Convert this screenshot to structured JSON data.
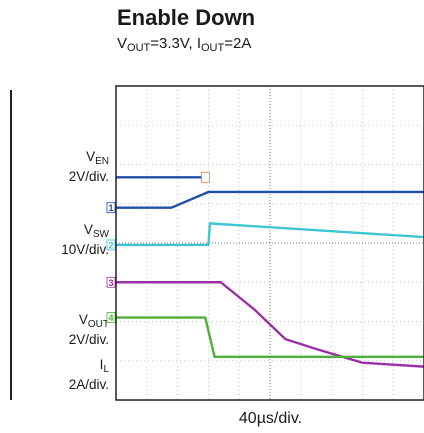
{
  "header": {
    "title": "Enable Down",
    "subtitle": {
      "v": "V",
      "vsub": "OUT",
      "vrest": "=3.3V, I",
      "isub": "OUT",
      "irest": "=2A"
    }
  },
  "labels": {
    "ven": {
      "main": "V",
      "sub": "EN",
      "scale": "2V/div."
    },
    "vsw": {
      "main": "V",
      "sub": "SW",
      "scale": "10V/div."
    },
    "vout": {
      "main": "V",
      "sub": "OUT",
      "scale": "2V/div."
    },
    "il": {
      "main": "I",
      "sub": "L",
      "scale": "2A/div."
    }
  },
  "xaxis": {
    "label": "40µs/div."
  },
  "colors": {
    "ch1": "#1f4fa8",
    "ch2": "#3cc6d4",
    "ch3": "#9b2fa6",
    "ch4": "#4fb03a",
    "trigger": "#f08020"
  },
  "chart_data": {
    "type": "line",
    "title": "Enable Down",
    "subtitle": "VOUT=3.3V, IOUT=2A",
    "xlabel": "40µs/div.",
    "x_divisions": 10,
    "y_divisions": 8,
    "grid": true,
    "series": [
      {
        "name": "VEN",
        "scale": "2V/div.",
        "marker": "1",
        "x": [
          0,
          1.8,
          3.0,
          10
        ],
        "divisions": [
          4.9,
          4.9,
          5.3,
          5.3
        ]
      },
      {
        "name": "VSW",
        "scale": "10V/div.",
        "marker": "2",
        "x": [
          0,
          3.0,
          3.05,
          10
        ],
        "divisions": [
          3.95,
          3.95,
          4.5,
          4.15
        ]
      },
      {
        "name": "VOUT",
        "scale": "2V/div.",
        "marker": "3",
        "x": [
          0,
          3.4,
          4.5,
          5.5,
          6.5,
          8.0,
          10
        ],
        "divisions": [
          3.0,
          3.0,
          2.3,
          1.55,
          1.3,
          0.95,
          0.85
        ]
      },
      {
        "name": "IL",
        "scale": "2A/div.",
        "marker": "4",
        "x": [
          0,
          2.9,
          3.2,
          10
        ],
        "divisions": [
          2.1,
          2.1,
          1.1,
          1.1
        ]
      }
    ]
  }
}
